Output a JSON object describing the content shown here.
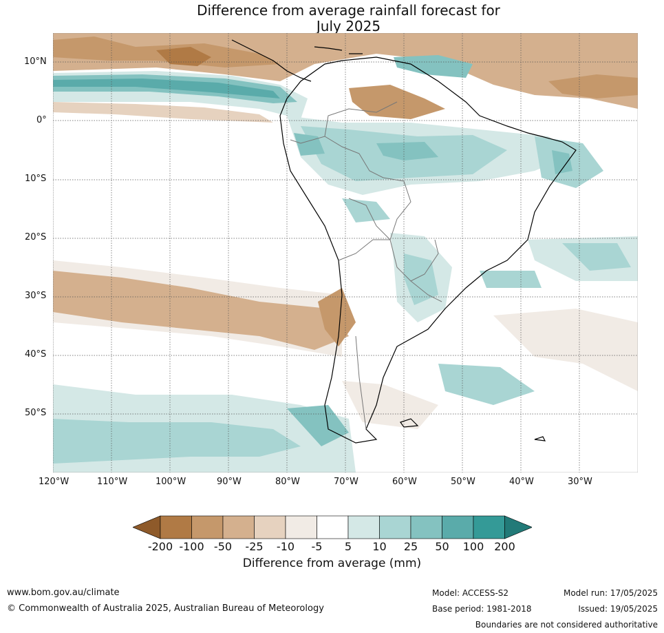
{
  "title_line1": "Difference from average rainfall forecast for",
  "title_line2": "July 2025",
  "lat_labels": [
    "10°N",
    "0°",
    "10°S",
    "20°S",
    "30°S",
    "40°S",
    "50°S"
  ],
  "lon_labels": [
    "120°W",
    "110°W",
    "100°W",
    "90°W",
    "80°W",
    "70°W",
    "60°W",
    "50°W",
    "40°W",
    "30°W"
  ],
  "colorbar": {
    "ticks": [
      "-200",
      "-100",
      "-50",
      "-25",
      "-10",
      "-5",
      "5",
      "10",
      "25",
      "50",
      "100",
      "200"
    ],
    "colors": [
      "#8e5a2a",
      "#b07a45",
      "#c5986b",
      "#d4b08e",
      "#e6d2bf",
      "#f1ebe5",
      "#ffffff",
      "#d4e8e6",
      "#a9d5d3",
      "#84c2c0",
      "#5aabaa",
      "#349a97",
      "#227a78"
    ],
    "label": "Difference from average (mm)"
  },
  "footer": {
    "url": "www.bom.gov.au/climate",
    "copyright": "© Commonwealth of Australia 2025, Australian Bureau of Meteorology",
    "model": "Model: ACCESS-S2",
    "base_period": "Base period: 1981-2018",
    "model_run": "Model run: 17/05/2025",
    "issued": "Issued: 19/05/2025",
    "disclaimer": "Boundaries are not considered authoritative"
  }
}
